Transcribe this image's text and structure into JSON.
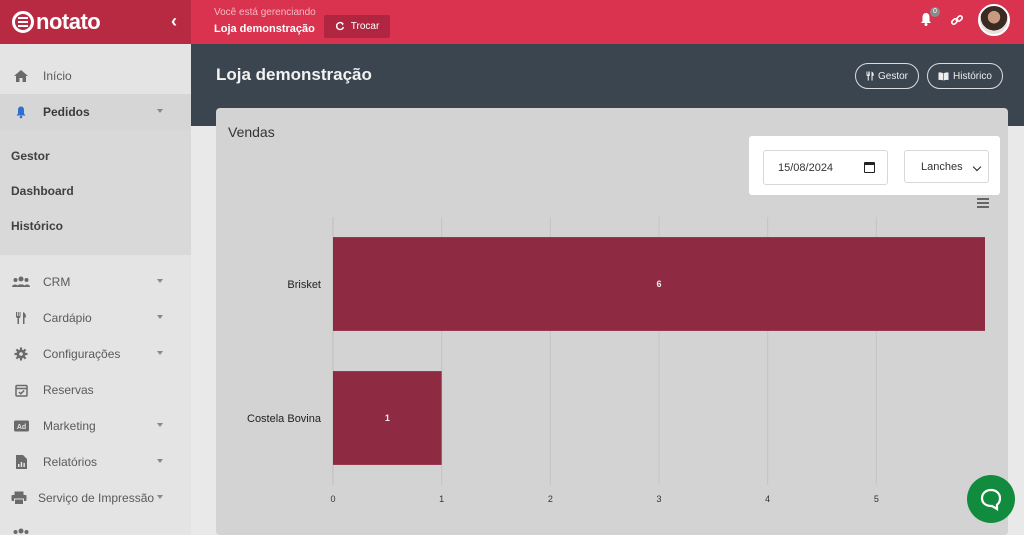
{
  "topbar": {
    "brand": "notato",
    "manage_hint": "Você está gerenciando",
    "store_name": "Loja demonstração",
    "switch_label": "Trocar",
    "notification_count": "0"
  },
  "sidebar": {
    "items_top": [
      {
        "label": "Início",
        "icon": "home-icon"
      },
      {
        "label": "Pedidos",
        "icon": "bell-icon"
      }
    ],
    "sub_items": [
      "Gestor",
      "Dashboard",
      "Histórico"
    ],
    "items_bottom": [
      {
        "label": "CRM",
        "icon": "users-icon"
      },
      {
        "label": "Cardápio",
        "icon": "utensils-icon"
      },
      {
        "label": "Configurações",
        "icon": "gear-icon"
      },
      {
        "label": "Reservas",
        "icon": "calendar-check-icon"
      },
      {
        "label": "Marketing",
        "icon": "ad-icon"
      },
      {
        "label": "Relatórios",
        "icon": "report-icon"
      },
      {
        "label": "Serviço de Impressão",
        "icon": "printer-icon"
      }
    ]
  },
  "main": {
    "title": "Loja demonstração",
    "btn_gestor": "Gestor",
    "btn_historico": "Histórico",
    "card_title": "Vendas",
    "date_value": "15/08/2024",
    "category_value": "Lanches"
  },
  "colors": {
    "brand": "#d9334f",
    "bar": "#8f2a43"
  },
  "chart_data": {
    "type": "bar",
    "orientation": "horizontal",
    "categories": [
      "Brisket",
      "Costela Bovina"
    ],
    "values": [
      6,
      1
    ],
    "xlim": [
      0,
      6
    ],
    "xticks": [
      0,
      1,
      2,
      3,
      4,
      5
    ],
    "grid": true,
    "data_labels": true
  }
}
